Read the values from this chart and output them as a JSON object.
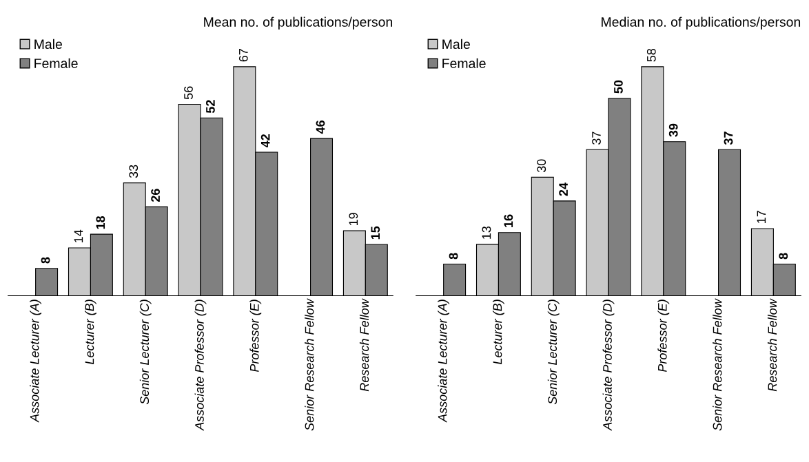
{
  "chart_data": [
    {
      "type": "bar",
      "title": "Mean no. of publications/person",
      "categories": [
        "Associate Lecturer (A)",
        "Lecturer (B)",
        "Senior Lecturer (C)",
        "Associate Professor (D)",
        "Professor (E)",
        "Senior Research Fellow",
        "Research Fellow"
      ],
      "series": [
        {
          "name": "Male",
          "color": "#c8c8c8",
          "values": [
            null,
            14,
            33,
            56,
            67,
            null,
            19
          ]
        },
        {
          "name": "Female",
          "color": "#808080",
          "values": [
            8,
            18,
            26,
            52,
            42,
            46,
            15
          ]
        }
      ],
      "data_labels": true,
      "legend": "top left"
    },
    {
      "type": "bar",
      "title": "Median no. of publications/person",
      "categories": [
        "Associate Lecturer (A)",
        "Lecturer (B)",
        "Senior Lecturer (C)",
        "Associate Professor (D)",
        "Professor (E)",
        "Senior Research Fellow",
        "Research Fellow"
      ],
      "series": [
        {
          "name": "Male",
          "color": "#c8c8c8",
          "values": [
            null,
            13,
            30,
            37,
            58,
            null,
            17
          ]
        },
        {
          "name": "Female",
          "color": "#808080",
          "values": [
            8,
            16,
            24,
            50,
            39,
            37,
            8
          ]
        }
      ],
      "data_labels": true,
      "legend": "top left"
    }
  ]
}
